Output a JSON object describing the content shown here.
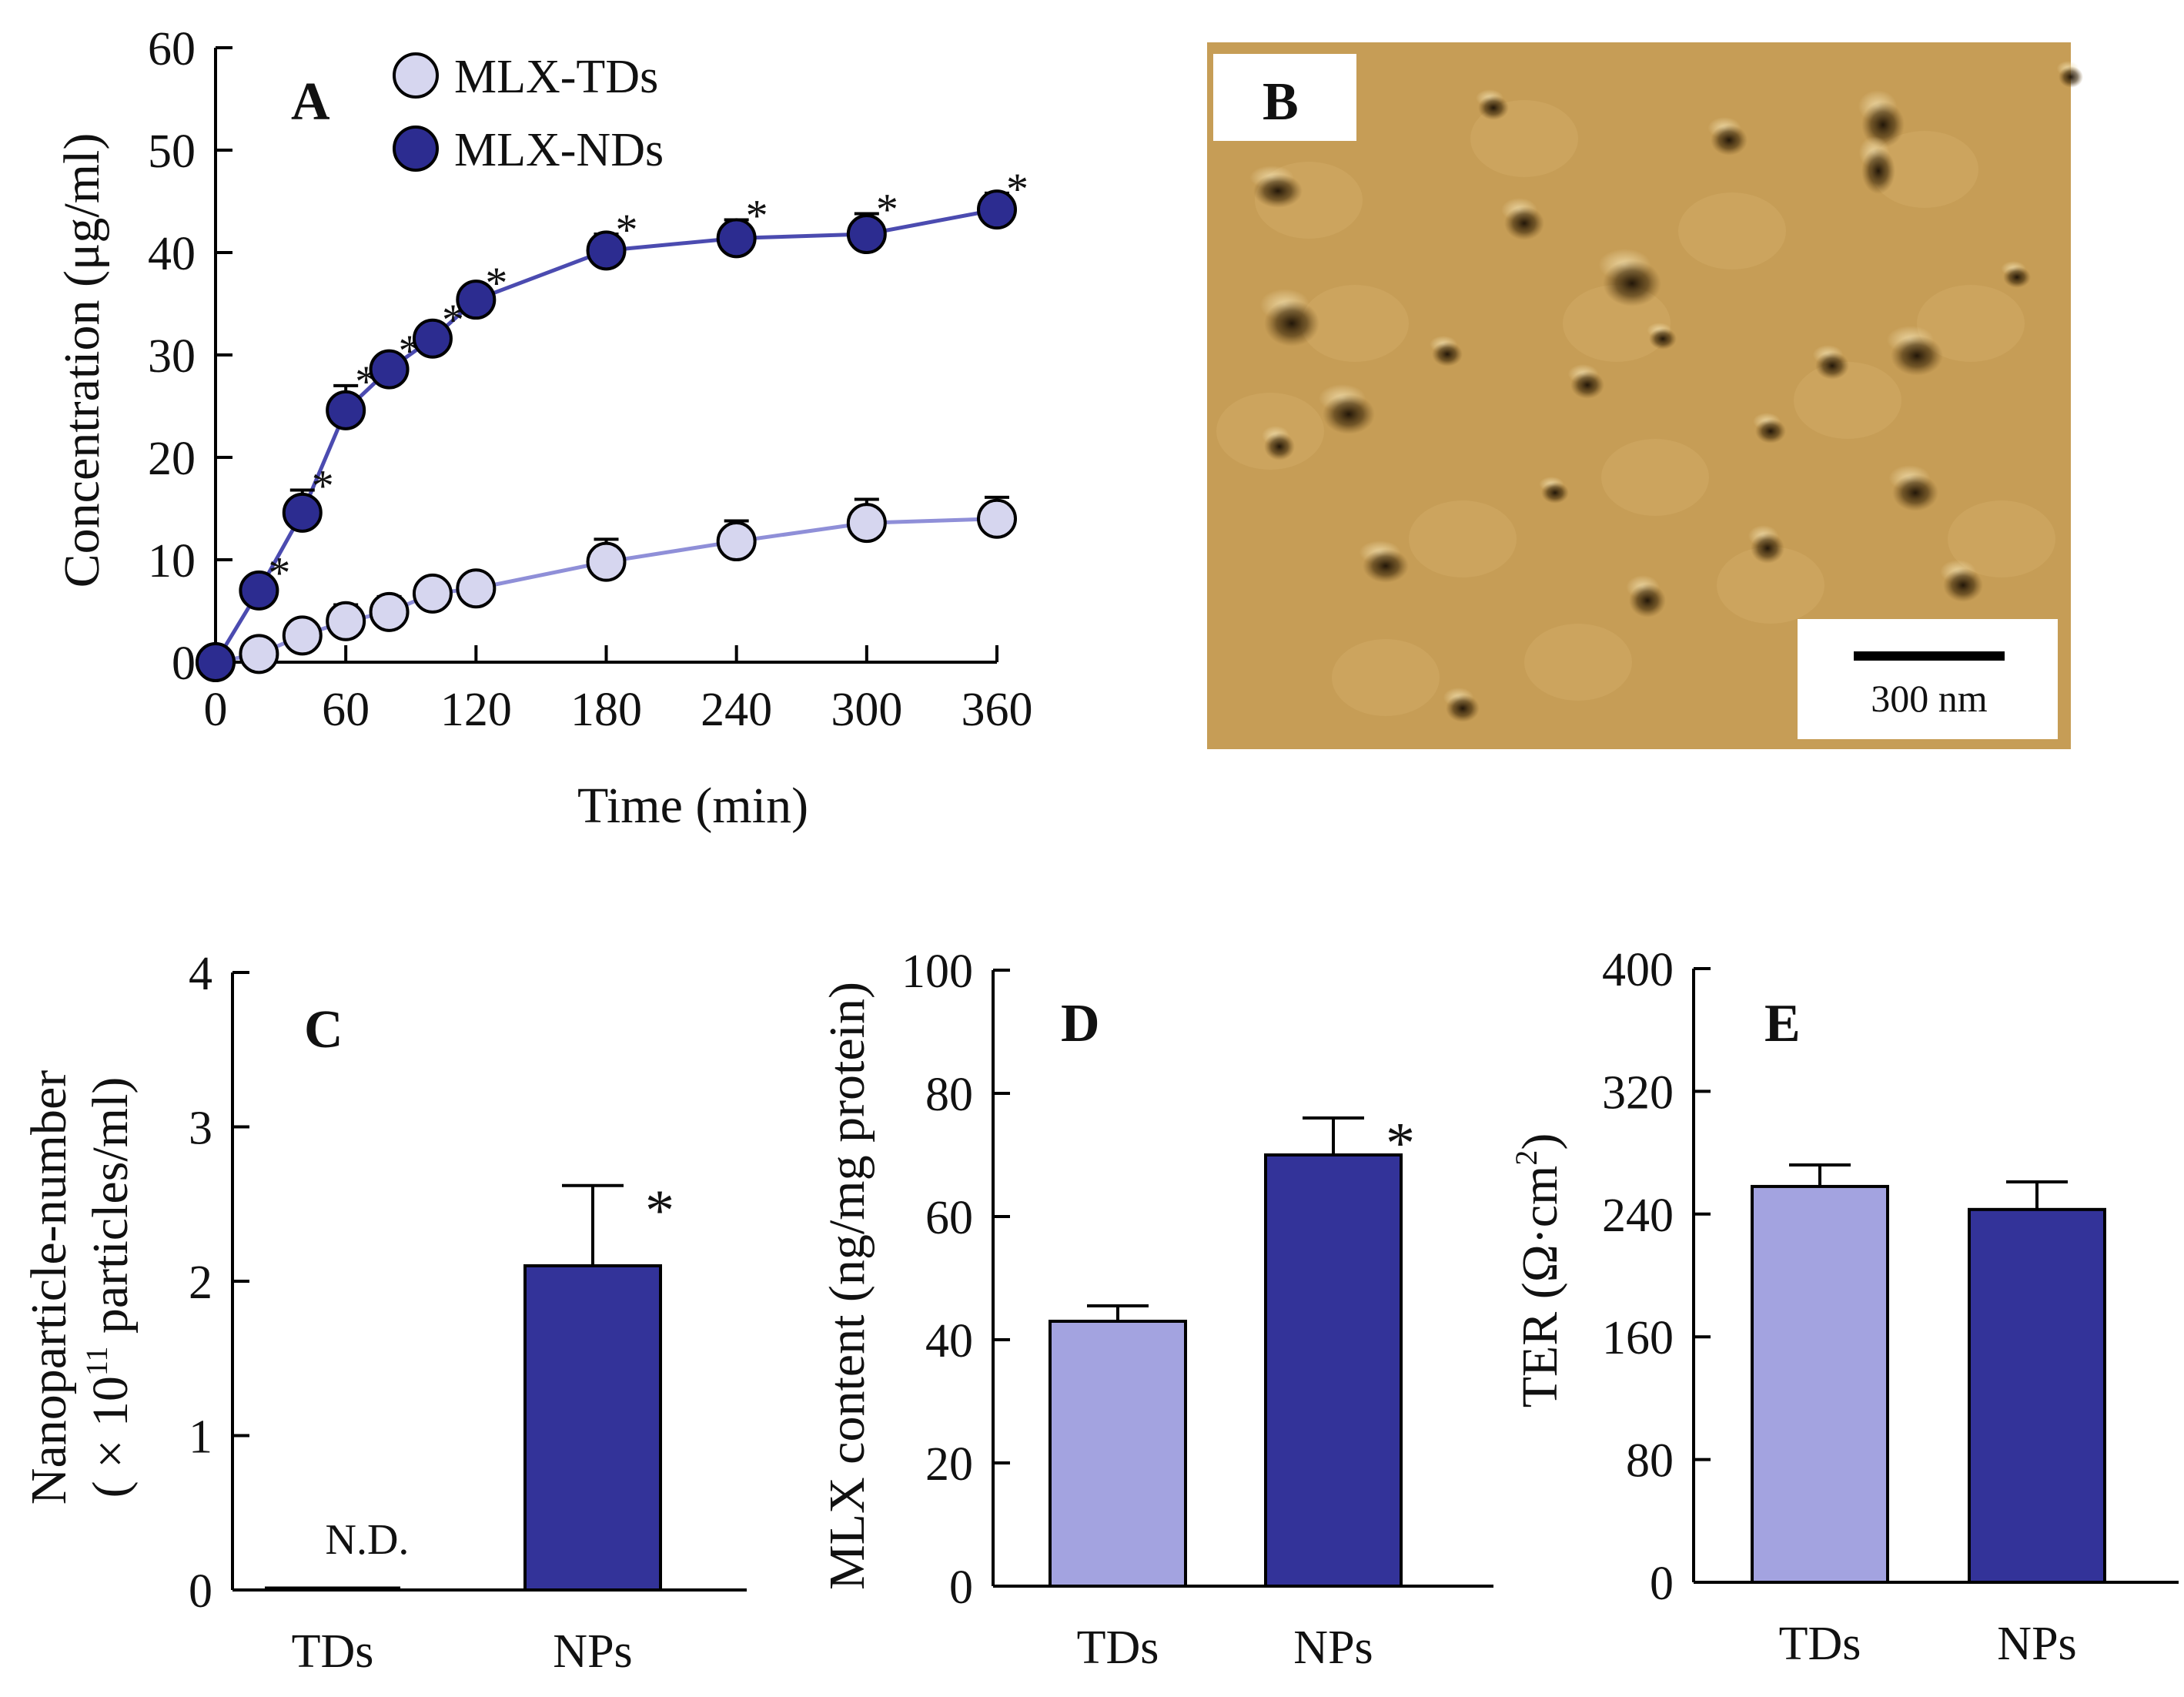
{
  "colors": {
    "nds": "#2c2c90",
    "tds_fill": "#d6d6ef",
    "tds_line": "#8f8fd8",
    "nds_line": "#4b4bb0",
    "bar_light": "#a3a3e0",
    "bar_dark": "#333399"
  },
  "panel_a": {
    "letter": "A",
    "ylabel": "Concentration (μg/ml)",
    "xlabel": "Time (min)"
  },
  "panel_b": {
    "letter": "B",
    "scale_text": "300 nm",
    "image_description_icon": "afm-image"
  },
  "panel_c": {
    "letter": "C",
    "ylabel_line1": "Nanoparticle-number",
    "ylabel_line2_pre": "( × 10",
    "ylabel_sup": "11",
    "ylabel_line2_post": " particles/ml)",
    "nd_label": "N.D."
  },
  "panel_d": {
    "letter": "D",
    "ylabel": "MLX content (ng/mg protein)"
  },
  "panel_e": {
    "letter": "E",
    "ylabel_pre": "TER (Ω·cm",
    "ylabel_sup": "2",
    "ylabel_post": ")"
  },
  "chart_data": [
    {
      "id": "A",
      "type": "line",
      "title": "",
      "xlabel": "Time (min)",
      "ylabel": "Concentration (μg/ml)",
      "xlim": [
        0,
        360
      ],
      "ylim": [
        0,
        60
      ],
      "x_ticks": [
        0,
        60,
        120,
        180,
        240,
        300,
        360
      ],
      "y_ticks": [
        0,
        10,
        20,
        30,
        40,
        50,
        60
      ],
      "legend_position": "top",
      "series": [
        {
          "name": "MLX-TDs",
          "x": [
            0,
            20,
            40,
            60,
            80,
            100,
            120,
            180,
            240,
            300,
            360
          ],
          "values": [
            0,
            0.8,
            2.6,
            4.0,
            4.9,
            6.7,
            7.2,
            9.8,
            11.8,
            13.6,
            14.0
          ],
          "err": [
            0,
            0.5,
            0.6,
            1.6,
            1.5,
            1.4,
            0.5,
            2.2,
            2.0,
            2.3,
            2.1
          ],
          "sig": [
            false,
            false,
            false,
            false,
            false,
            false,
            false,
            false,
            false,
            false,
            false
          ]
        },
        {
          "name": "MLX-NDs",
          "x": [
            0,
            20,
            40,
            60,
            80,
            100,
            120,
            180,
            240,
            300,
            360
          ],
          "values": [
            0,
            7.0,
            14.6,
            24.6,
            28.6,
            31.6,
            35.4,
            40.2,
            41.4,
            41.8,
            44.2
          ],
          "err": [
            0,
            1.3,
            2.2,
            2.4,
            1.4,
            1.4,
            1.2,
            1.6,
            1.8,
            2.0,
            1.6
          ],
          "sig": [
            false,
            true,
            true,
            true,
            true,
            true,
            true,
            true,
            true,
            true,
            true
          ]
        }
      ],
      "sig_label": "*"
    },
    {
      "id": "C",
      "type": "bar",
      "categories": [
        "TDs",
        "NPs"
      ],
      "values": [
        0,
        2.1
      ],
      "err": [
        0,
        0.52
      ],
      "sig": [
        false,
        true
      ],
      "ylim": [
        0,
        4
      ],
      "y_ticks": [
        0,
        1,
        2,
        3,
        4
      ],
      "sig_label": "*"
    },
    {
      "id": "D",
      "type": "bar",
      "categories": [
        "TDs",
        "NPs"
      ],
      "values": [
        43,
        70
      ],
      "err": [
        2.5,
        6
      ],
      "sig": [
        false,
        true
      ],
      "ylim": [
        0,
        100
      ],
      "y_ticks": [
        0,
        20,
        40,
        60,
        80,
        100
      ],
      "sig_label": "*"
    },
    {
      "id": "E",
      "type": "bar",
      "categories": [
        "TDs",
        "NPs"
      ],
      "values": [
        258,
        243
      ],
      "err": [
        14,
        18
      ],
      "sig": [
        false,
        false
      ],
      "ylim": [
        0,
        400
      ],
      "y_ticks": [
        0,
        80,
        160,
        240,
        320,
        400
      ],
      "sig_label": "*"
    }
  ]
}
